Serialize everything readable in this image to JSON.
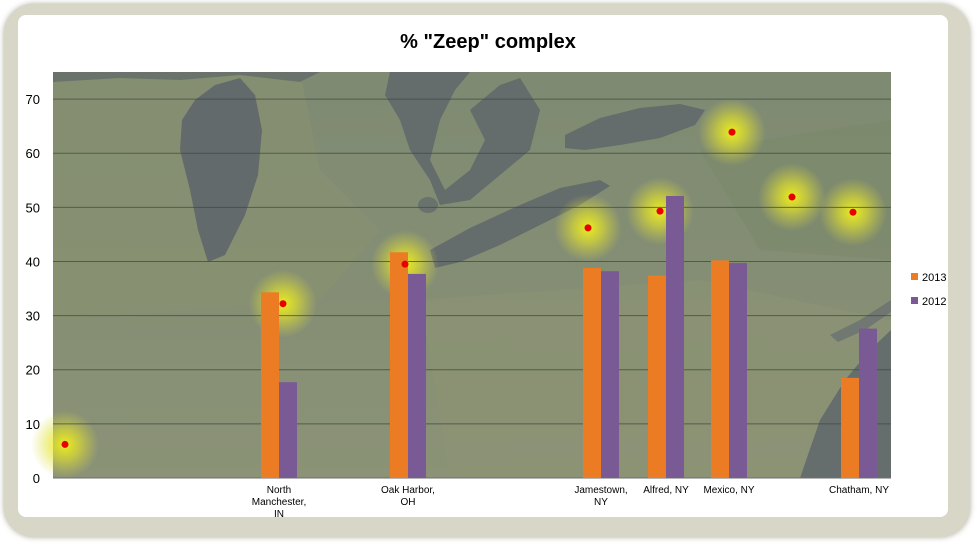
{
  "chart_data": {
    "type": "bar",
    "title": "% \"Zeep\" complex",
    "xlabel": "",
    "ylabel": "",
    "ylim": [
      0,
      75
    ],
    "y_ticks": [
      0,
      10,
      20,
      30,
      40,
      50,
      60,
      70
    ],
    "grid": true,
    "legend_position": "right",
    "background": "satellite map of the Great Lakes region with glowing site markers",
    "categories": [
      "North Manchester, IN",
      "Oak Harbor, OH",
      "Jamestown, NY",
      "Alfred, NY",
      "Mexico, NY",
      "Chatham, NY"
    ],
    "category_lines": [
      [
        "North",
        "Manchester,",
        "IN"
      ],
      [
        "Oak Harbor,",
        "OH"
      ],
      [
        "Jamestown,",
        "NY"
      ],
      [
        "Alfred, NY"
      ],
      [
        "Mexico, NY"
      ],
      [
        "Chatham, NY"
      ]
    ],
    "series": [
      {
        "name": "2013",
        "color": "#ec7c24",
        "values": [
          34.3,
          41.7,
          38.8,
          37.4,
          40.2,
          18.5
        ]
      },
      {
        "name": "2012",
        "color": "#7a5a95",
        "values": [
          17.7,
          37.7,
          38.2,
          52.1,
          39.7,
          27.6
        ]
      }
    ],
    "site_markers_y": [
      6.2,
      32.2,
      39.5,
      46.2,
      49.3,
      63.9,
      51.9,
      49.1
    ]
  }
}
